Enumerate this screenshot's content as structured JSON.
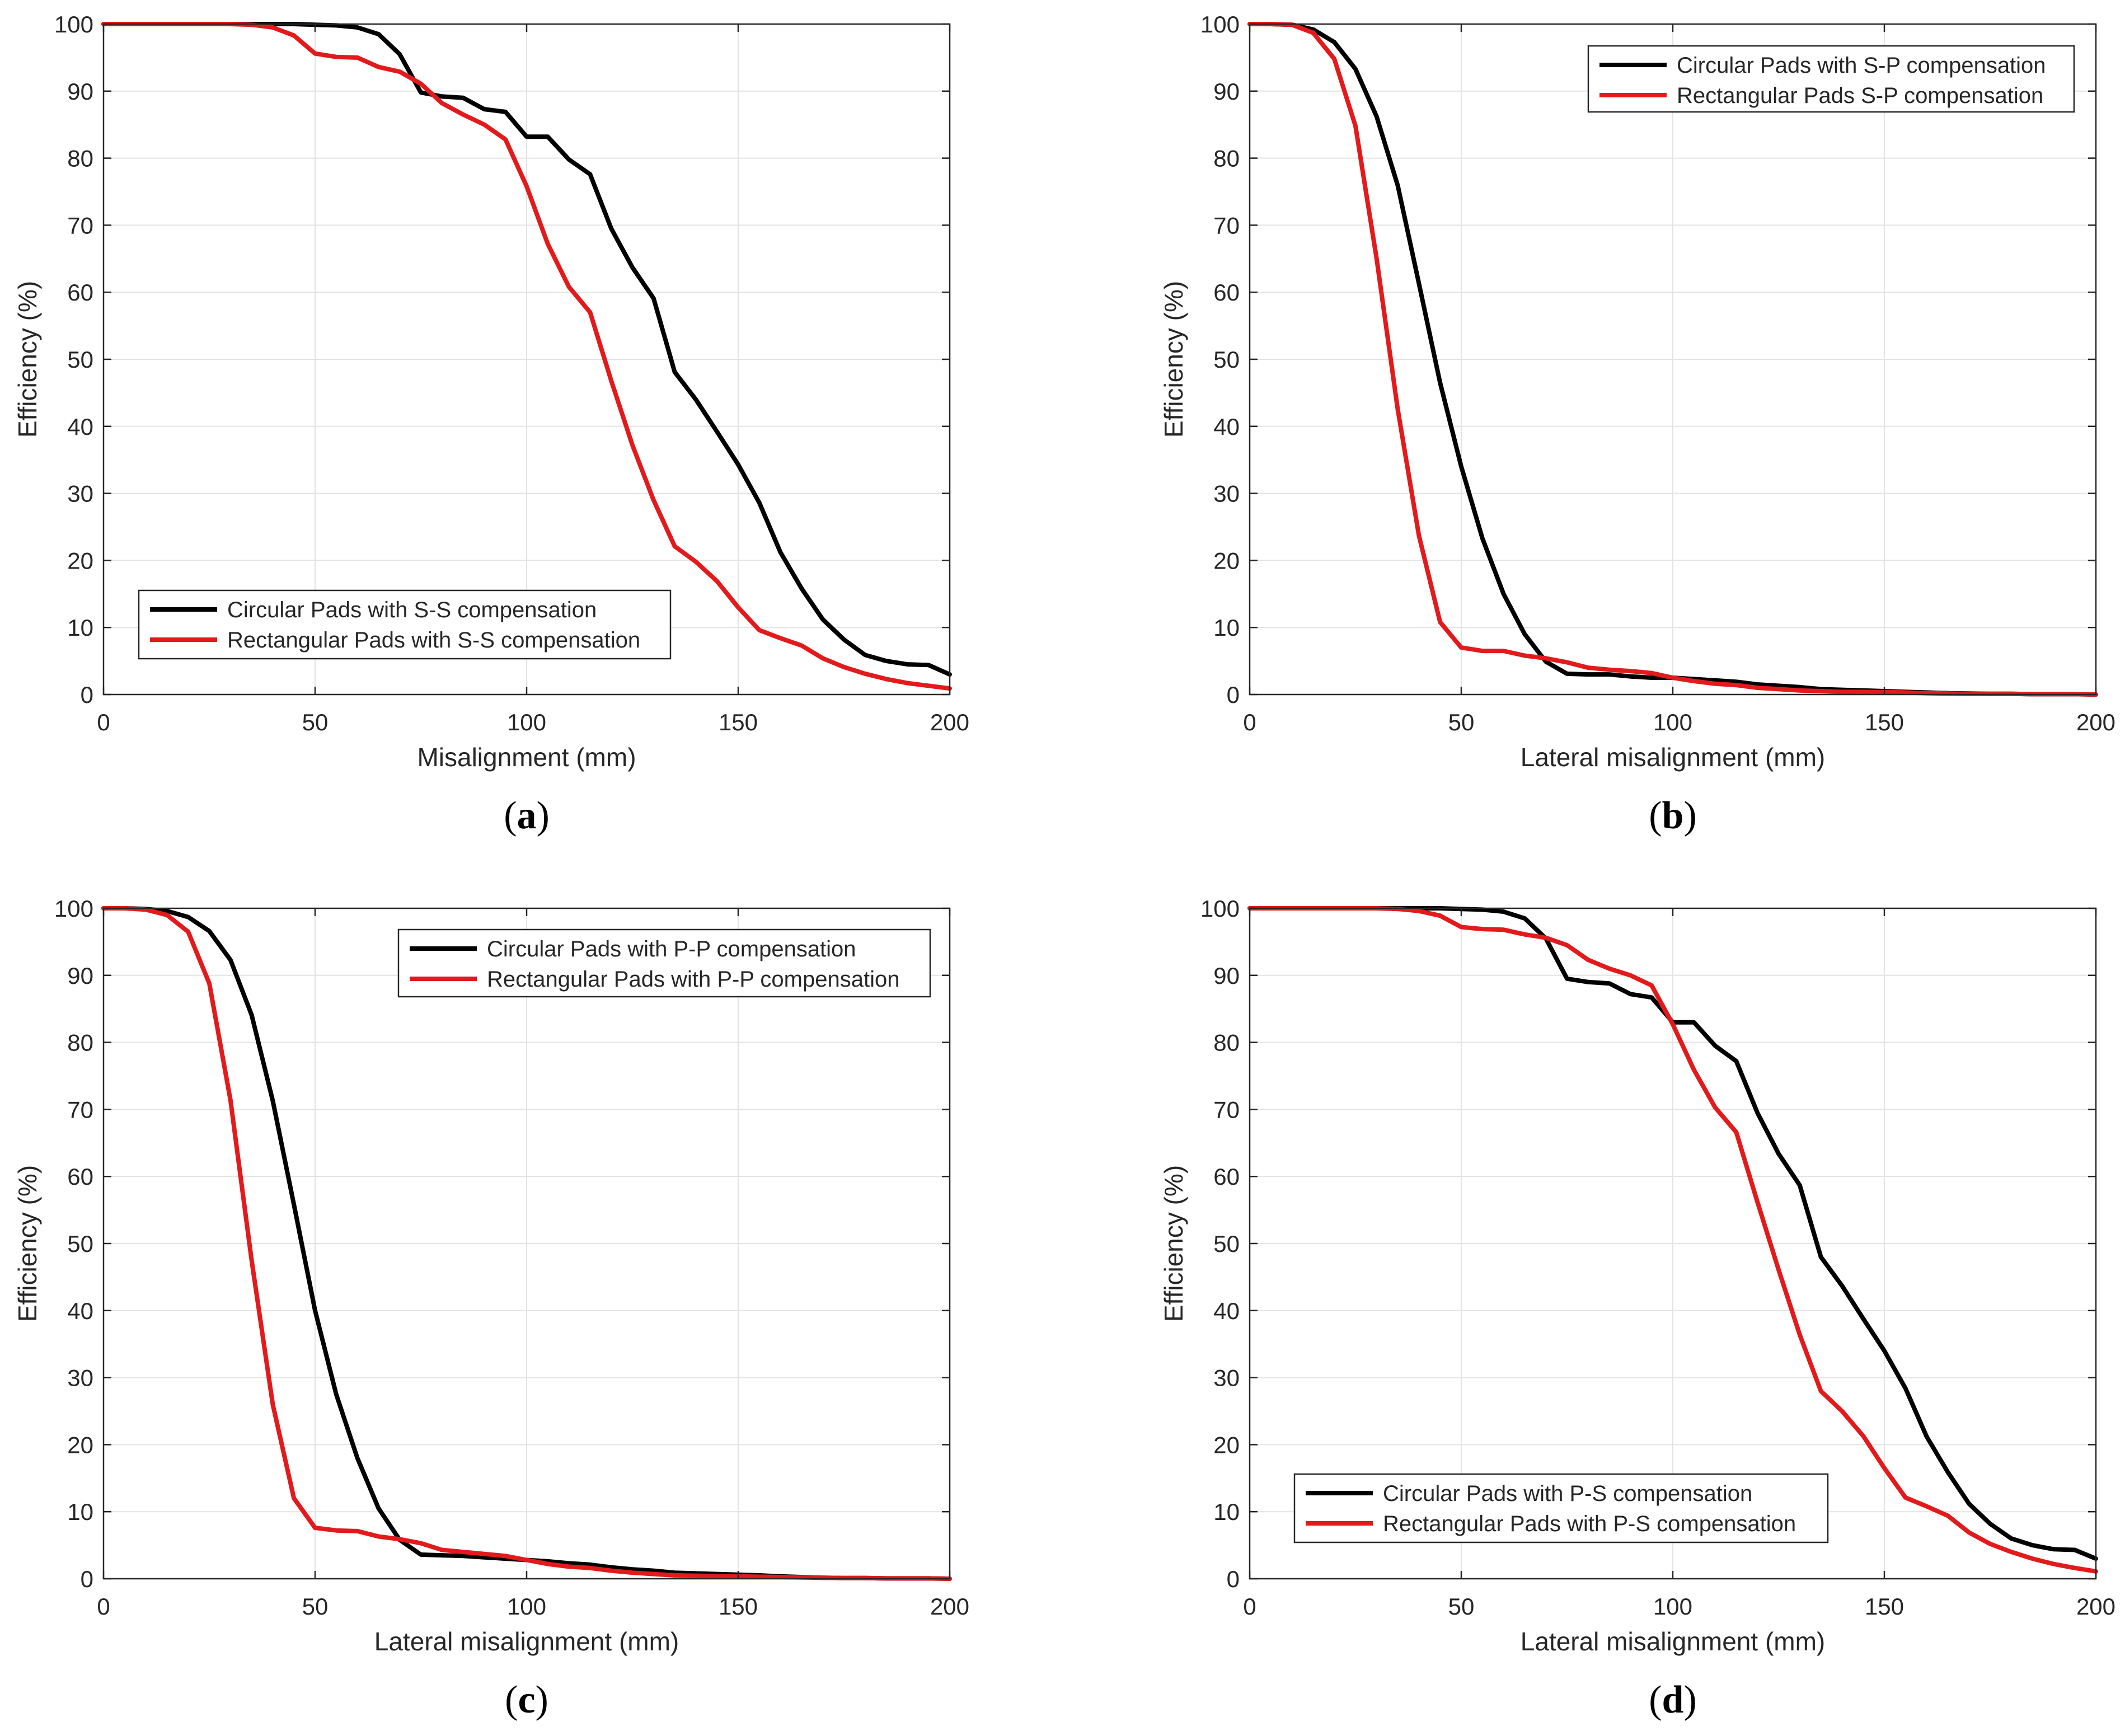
{
  "colors": {
    "circular": "#000000",
    "rectangular": "#e31a1c",
    "grid": "#e3e3e3",
    "axis": "#262626",
    "text": "#262626"
  },
  "chart_data": [
    {
      "panel_label": "(a)",
      "type": "line",
      "xlabel": "Misalignment (mm)",
      "ylabel": "Efficiency (%)",
      "xlim": [
        0,
        200
      ],
      "ylim": [
        0,
        100
      ],
      "xticks": [
        0,
        50,
        100,
        150,
        200
      ],
      "yticks": [
        0,
        10,
        20,
        30,
        40,
        50,
        60,
        70,
        80,
        90,
        100
      ],
      "grid": true,
      "legend_position": "bottom-left",
      "x": [
        0,
        5,
        10,
        15,
        20,
        25,
        30,
        35,
        40,
        45,
        50,
        55,
        60,
        65,
        70,
        75,
        80,
        85,
        90,
        95,
        100,
        105,
        110,
        115,
        120,
        125,
        130,
        135,
        140,
        145,
        150,
        155,
        160,
        165,
        170,
        175,
        180,
        185,
        190,
        195,
        200
      ],
      "series": [
        {
          "name": "Circular Pads with S-S compensation",
          "color": "#000000",
          "values": [
            100,
            100,
            100,
            100,
            100,
            100,
            100,
            100,
            100,
            100,
            99.9,
            99.8,
            99.5,
            98.5,
            95.5,
            89.8,
            89.2,
            89,
            87.3,
            86.9,
            83.2,
            83.2,
            79.8,
            77.6,
            69.5,
            63.7,
            59.1,
            48.1,
            44,
            39.2,
            34.3,
            28.6,
            21.2,
            15.8,
            11.2,
            8.2,
            5.9,
            5,
            4.5,
            4.4,
            3
          ]
        },
        {
          "name": "Rectangular Pads with S-S compensation",
          "color": "#e31a1c",
          "values": [
            100,
            100,
            100,
            100,
            100,
            100,
            100,
            99.9,
            99.5,
            98.3,
            95.6,
            95.1,
            95,
            93.6,
            92.9,
            91.1,
            88.2,
            86.5,
            85,
            82.8,
            75.8,
            67.2,
            60.8,
            57,
            46.8,
            37.2,
            29,
            22.1,
            19.8,
            16.9,
            13,
            9.6,
            8.4,
            7.3,
            5.4,
            4.1,
            3.1,
            2.3,
            1.7,
            1.3,
            0.9
          ]
        }
      ]
    },
    {
      "panel_label": "(b)",
      "type": "line",
      "xlabel": "Lateral misalignment (mm)",
      "ylabel": "Efficiency (%)",
      "xlim": [
        0,
        200
      ],
      "ylim": [
        0,
        100
      ],
      "xticks": [
        0,
        50,
        100,
        150,
        200
      ],
      "yticks": [
        0,
        10,
        20,
        30,
        40,
        50,
        60,
        70,
        80,
        90,
        100
      ],
      "grid": true,
      "legend_position": "top-right",
      "x": [
        0,
        5,
        10,
        15,
        20,
        25,
        30,
        35,
        40,
        45,
        50,
        55,
        60,
        65,
        70,
        75,
        80,
        85,
        90,
        95,
        100,
        105,
        110,
        115,
        120,
        125,
        130,
        135,
        140,
        145,
        150,
        155,
        160,
        165,
        170,
        175,
        180,
        185,
        190,
        195,
        200
      ],
      "series": [
        {
          "name": "Circular Pads with S-P compensation",
          "color": "#000000",
          "values": [
            100,
            100,
            99.9,
            99.2,
            97.3,
            93.3,
            86.2,
            75.9,
            61.3,
            46.5,
            34,
            23.3,
            15,
            9,
            4.9,
            3.1,
            3,
            3,
            2.7,
            2.5,
            2.5,
            2.3,
            2.1,
            1.9,
            1.5,
            1.3,
            1.1,
            0.8,
            0.7,
            0.6,
            0.5,
            0.4,
            0.3,
            0.2,
            0.15,
            0.1,
            0.1,
            0.05,
            0.05,
            0.05,
            0
          ]
        },
        {
          "name": "Rectangular Pads S-P compensation",
          "color": "#e31a1c",
          "values": [
            100,
            100,
            99.9,
            98.7,
            94.8,
            84.8,
            65,
            42.5,
            23.7,
            10.8,
            7,
            6.5,
            6.5,
            5.8,
            5.4,
            4.8,
            4,
            3.7,
            3.5,
            3.2,
            2.5,
            2,
            1.6,
            1.4,
            1,
            0.8,
            0.6,
            0.5,
            0.4,
            0.4,
            0.35,
            0.3,
            0.2,
            0.15,
            0.1,
            0.1,
            0.1,
            0.05,
            0.05,
            0.05,
            0
          ]
        }
      ]
    },
    {
      "panel_label": "(c)",
      "type": "line",
      "xlabel": "Lateral misalignment (mm)",
      "ylabel": "Efficiency (%)",
      "xlim": [
        0,
        200
      ],
      "ylim": [
        0,
        100
      ],
      "xticks": [
        0,
        50,
        100,
        150,
        200
      ],
      "yticks": [
        0,
        10,
        20,
        30,
        40,
        50,
        60,
        70,
        80,
        90,
        100
      ],
      "grid": true,
      "legend_position": "top-right",
      "x": [
        0,
        5,
        10,
        15,
        20,
        25,
        30,
        35,
        40,
        45,
        50,
        55,
        60,
        65,
        70,
        75,
        80,
        85,
        90,
        95,
        100,
        105,
        110,
        115,
        120,
        125,
        130,
        135,
        140,
        145,
        150,
        155,
        160,
        165,
        170,
        175,
        180,
        185,
        190,
        195,
        200
      ],
      "series": [
        {
          "name": "Circular Pads with P-P compensation",
          "color": "#000000",
          "values": [
            100,
            100,
            99.9,
            99.6,
            98.7,
            96.6,
            92.3,
            84.1,
            71.3,
            55.8,
            40,
            27.5,
            18,
            10.5,
            5.8,
            3.6,
            3.5,
            3.4,
            3.2,
            3,
            2.8,
            2.6,
            2.3,
            2.1,
            1.7,
            1.4,
            1.2,
            0.9,
            0.8,
            0.7,
            0.6,
            0.5,
            0.35,
            0.25,
            0.15,
            0.1,
            0.1,
            0.05,
            0.05,
            0.05,
            0
          ]
        },
        {
          "name": "Rectangular Pads with P-P compensation",
          "color": "#e31a1c",
          "values": [
            100,
            100,
            99.8,
            99,
            96.5,
            88.8,
            71.4,
            47.5,
            26,
            12,
            7.6,
            7.2,
            7.1,
            6.3,
            5.9,
            5.3,
            4.3,
            4,
            3.7,
            3.4,
            2.8,
            2.2,
            1.8,
            1.6,
            1.2,
            0.9,
            0.7,
            0.5,
            0.45,
            0.4,
            0.35,
            0.3,
            0.25,
            0.2,
            0.15,
            0.1,
            0.1,
            0.05,
            0.05,
            0.05,
            0
          ]
        }
      ]
    },
    {
      "panel_label": "(d)",
      "type": "line",
      "xlabel": "Lateral misalignment (mm)",
      "ylabel": "Efficiency (%)",
      "xlim": [
        0,
        200
      ],
      "ylim": [
        0,
        100
      ],
      "xticks": [
        0,
        50,
        100,
        150,
        200
      ],
      "yticks": [
        0,
        10,
        20,
        30,
        40,
        50,
        60,
        70,
        80,
        90,
        100
      ],
      "grid": true,
      "legend_position": "bottom-left",
      "x": [
        0,
        5,
        10,
        15,
        20,
        25,
        30,
        35,
        40,
        45,
        50,
        55,
        60,
        65,
        70,
        75,
        80,
        85,
        90,
        95,
        100,
        105,
        110,
        115,
        120,
        125,
        130,
        135,
        140,
        145,
        150,
        155,
        160,
        165,
        170,
        175,
        180,
        185,
        190,
        195,
        200
      ],
      "series": [
        {
          "name": "Circular Pads with P-S compensation",
          "color": "#000000",
          "values": [
            100,
            100,
            100,
            100,
            100,
            100,
            100,
            100,
            100,
            100,
            99.9,
            99.8,
            99.5,
            98.5,
            95.5,
            89.5,
            89,
            88.8,
            87.2,
            86.7,
            83,
            83,
            79.5,
            77.2,
            69.5,
            63.4,
            58.7,
            48,
            43.7,
            38.8,
            34,
            28.4,
            21.2,
            15.9,
            11.2,
            8.2,
            6,
            5,
            4.4,
            4.3,
            3
          ]
        },
        {
          "name": "Rectangular Pads with P-S compensation",
          "color": "#e31a1c",
          "values": [
            100,
            100,
            100,
            100,
            100,
            100,
            100,
            99.9,
            99.6,
            98.9,
            97.2,
            96.9,
            96.8,
            96.1,
            95.6,
            94.5,
            92.3,
            91,
            90,
            88.5,
            82.7,
            75.9,
            70.3,
            66.6,
            56.2,
            46.1,
            36.4,
            28,
            25,
            21.3,
            16.5,
            12.1,
            10.8,
            9.4,
            6.9,
            5.2,
            4,
            3,
            2.2,
            1.6,
            1.1
          ]
        }
      ]
    }
  ]
}
